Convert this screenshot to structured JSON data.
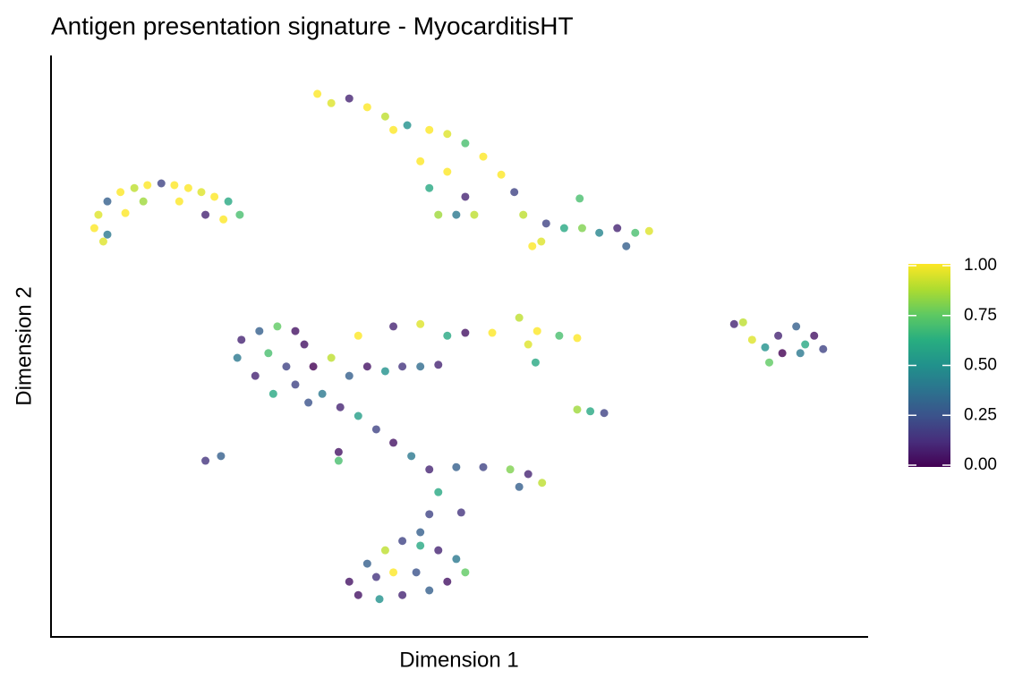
{
  "chart_data": {
    "type": "scatter",
    "title": "Antigen presentation signature - MyocarditisHT",
    "x_label": "Dimension 1",
    "y_label": "Dimension 2",
    "xlim": [
      0,
      100
    ],
    "ylim": [
      0,
      100
    ],
    "colormap": "viridis",
    "clim": [
      0,
      1
    ],
    "cticks": [
      {
        "value": 1,
        "label": "1.00"
      },
      {
        "value": 0.75,
        "label": "0.75"
      },
      {
        "value": 0.5,
        "label": "0.50"
      },
      {
        "value": 0.25,
        "label": "0.25"
      },
      {
        "value": 0,
        "label": "0.00"
      }
    ],
    "x": [
      5.3,
      5.8,
      6.9,
      8.5,
      10.2,
      11.8,
      13.5,
      15.1,
      16.8,
      18.4,
      20.0,
      21.7,
      23.1,
      6.9,
      9.1,
      11.3,
      15.7,
      18.9,
      21.1,
      6.4,
      32.6,
      34.3,
      36.5,
      38.7,
      40.9,
      43.6,
      46.3,
      48.5,
      50.7,
      52.9,
      55.1,
      56.7,
      57.8,
      58.9,
      45.2,
      46.3,
      47.4,
      48.5,
      50.7,
      51.8,
      41.9,
      49.6,
      60.6,
      62.8,
      65.0,
      67.1,
      69.3,
      71.5,
      73.2,
      70.4,
      64.7,
      60.0,
      23.3,
      25.5,
      27.7,
      29.9,
      22.8,
      25.0,
      27.2,
      29.9,
      32.1,
      34.3,
      36.5,
      38.7,
      40.9,
      43.0,
      45.2,
      47.4,
      26.6,
      28.8,
      31.0,
      33.2,
      35.4,
      37.6,
      31.5,
      37.6,
      41.9,
      45.2,
      48.5,
      50.7,
      54.0,
      57.3,
      59.5,
      62.2,
      64.4,
      58.4,
      59.3,
      39.8,
      41.9,
      44.1,
      46.3,
      49.6,
      52.9,
      56.2,
      58.4,
      60.1,
      57.3,
      47.4,
      46.3,
      45.2,
      50.2,
      36.5,
      38.7,
      40.9,
      43.0,
      45.2,
      47.4,
      49.6,
      50.7,
      48.5,
      46.3,
      43.0,
      40.2,
      37.6,
      41.9,
      44.7,
      39.8,
      18.9,
      20.8,
      35.2,
      35.2,
      66.0,
      67.7,
      64.4,
      89.0,
      91.2,
      93.4,
      94.5,
      91.7,
      89.5,
      92.3,
      87.9,
      85.8,
      83.6,
      84.7,
      87.4
    ],
    "y": [
      70.3,
      72.6,
      74.9,
      76.5,
      77.2,
      77.7,
      78.0,
      77.7,
      77.2,
      76.5,
      75.7,
      74.9,
      72.6,
      69.2,
      72.9,
      74.9,
      74.9,
      72.6,
      71.8,
      68.0,
      93.4,
      91.8,
      92.6,
      91.1,
      89.5,
      88.0,
      87.2,
      86.5,
      84.9,
      82.6,
      79.5,
      76.5,
      72.6,
      67.2,
      81.8,
      77.2,
      72.6,
      80.0,
      75.7,
      72.6,
      87.2,
      72.6,
      71.1,
      70.3,
      70.3,
      69.5,
      70.3,
      69.5,
      69.8,
      67.2,
      75.4,
      68.0,
      51.1,
      52.6,
      53.4,
      52.6,
      48.0,
      44.9,
      41.8,
      43.4,
      46.5,
      48.0,
      44.9,
      46.5,
      45.7,
      46.5,
      46.5,
      46.8,
      48.8,
      46.5,
      50.3,
      41.8,
      39.5,
      38.0,
      40.3,
      51.8,
      53.4,
      53.8,
      51.8,
      52.3,
      52.3,
      54.9,
      52.6,
      51.8,
      51.4,
      50.3,
      47.2,
      35.7,
      33.4,
      31.1,
      28.8,
      29.2,
      29.2,
      28.8,
      28.0,
      26.5,
      25.8,
      24.9,
      21.1,
      18.0,
      21.4,
      9.5,
      12.6,
      14.9,
      16.5,
      15.7,
      14.9,
      13.4,
      11.1,
      9.5,
      8.0,
      7.2,
      6.5,
      7.2,
      11.1,
      11.1,
      10.3,
      30.3,
      31.1,
      31.8,
      30.3,
      38.8,
      38.5,
      39.1,
      51.8,
      53.4,
      51.8,
      49.5,
      48.8,
      48.8,
      50.3,
      47.2,
      51.1,
      53.8,
      54.1,
      49.8
    ],
    "values": [
      1,
      0.95,
      0.3,
      1,
      0.9,
      1,
      0.2,
      1,
      1,
      0.95,
      1,
      0.6,
      0.7,
      0.4,
      1,
      0.85,
      1,
      0.1,
      1,
      0.95,
      1,
      0.95,
      0.1,
      1,
      0.9,
      0.5,
      1,
      0.95,
      0.7,
      1,
      1,
      0.2,
      0.9,
      1,
      1,
      0.6,
      0.85,
      1,
      0.1,
      0.9,
      1,
      0.4,
      0.2,
      0.6,
      0.8,
      0.45,
      0.1,
      0.7,
      0.95,
      0.3,
      0.7,
      0.95,
      0.1,
      0.3,
      0.75,
      0.05,
      0.4,
      0.1,
      0.6,
      0.2,
      0,
      0.9,
      0.3,
      0.05,
      0.5,
      0.15,
      0.35,
      0.1,
      0.7,
      0.2,
      0.05,
      0.4,
      0.1,
      0.55,
      0.25,
      1,
      0.1,
      0.95,
      0.6,
      0.05,
      1,
      0.9,
      1,
      0.7,
      1,
      0.95,
      0.6,
      0.2,
      0.05,
      0.4,
      0.1,
      0.3,
      0.2,
      0.8,
      0.1,
      0.9,
      0.3,
      0.6,
      0.2,
      0.3,
      0.15,
      0.05,
      0.3,
      0.9,
      0.2,
      0.6,
      0.1,
      0.4,
      0.75,
      0.05,
      0.3,
      0.1,
      0.5,
      0.05,
      1,
      0.25,
      0.15,
      0.15,
      0.3,
      0.05,
      0.7,
      0.6,
      0.2,
      0.85,
      0.1,
      0.3,
      0.05,
      0.2,
      0.4,
      0,
      0.6,
      0.75,
      0.95,
      0.1,
      0.9,
      0.5
    ]
  }
}
